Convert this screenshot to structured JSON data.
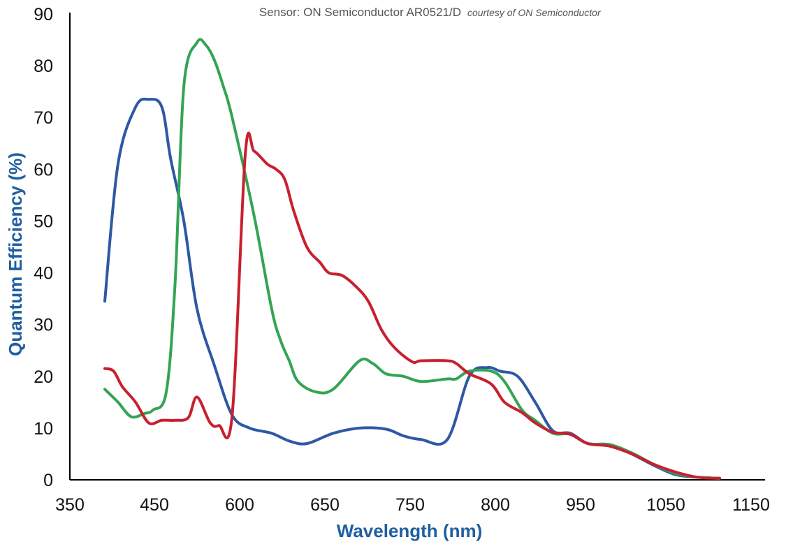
{
  "chart_data": {
    "type": "line",
    "title": "Sensor: ON Semiconductor AR0521/D",
    "subtitle": "courtesy of ON Semiconductor",
    "xlabel": "Wavelength (nm)",
    "ylabel": "Quantum Efficiency (%)",
    "xticks": [
      "350",
      "450",
      "600",
      "650",
      "750",
      "800",
      "950",
      "1050",
      "1150"
    ],
    "yticks": [
      "0",
      "10",
      "20",
      "30",
      "40",
      "50",
      "60",
      "70",
      "80",
      "90"
    ],
    "ylim": [
      0,
      90
    ],
    "grid": false,
    "legend": "none",
    "series": [
      {
        "color": "#2d58a4",
        "x": [
          400,
          415,
          435,
          450,
          465,
          475,
          490,
          505,
          525,
          545,
          565,
          590,
          610,
          630,
          660,
          690,
          720,
          740,
          760,
          790,
          815,
          835,
          850,
          870,
          890,
          910,
          930,
          950,
          975,
          1000,
          1025,
          1050,
          1075,
          1100
        ],
        "values": [
          34.5,
          61,
          72,
          73.5,
          72,
          62,
          50,
          33,
          22,
          12.5,
          10,
          9,
          7.5,
          7,
          9,
          10,
          9.8,
          8.5,
          7.8,
          7.8,
          20,
          21.7,
          21,
          20,
          15,
          9.5,
          9,
          7,
          6.8,
          5,
          2.8,
          1,
          0.5,
          0.3
        ]
      },
      {
        "color": "#34a454",
        "x": [
          400,
          415,
          430,
          445,
          455,
          470,
          480,
          490,
          505,
          515,
          525,
          535,
          545,
          570,
          590,
          600,
          610,
          620,
          640,
          660,
          690,
          705,
          720,
          740,
          760,
          790,
          800,
          815,
          840,
          855,
          875,
          890,
          910,
          930,
          950,
          975,
          1000,
          1025,
          1050,
          1075,
          1100
        ],
        "values": [
          17.5,
          15,
          12.2,
          12.8,
          13.5,
          17,
          38,
          76,
          84.5,
          84,
          81,
          76,
          70,
          51,
          33,
          27,
          23,
          19,
          17,
          17.5,
          23,
          22.5,
          20.5,
          20,
          19,
          19.5,
          19.5,
          21,
          21,
          19,
          13.5,
          11.5,
          9,
          8.8,
          7,
          6.8,
          5.2,
          3,
          1.2,
          0.5,
          0.3
        ]
      },
      {
        "color": "#c8202e",
        "x": [
          400,
          410,
          420,
          435,
          450,
          465,
          480,
          495,
          505,
          520,
          530,
          545,
          560,
          570,
          585,
          595,
          605,
          615,
          630,
          645,
          655,
          670,
          685,
          700,
          715,
          730,
          750,
          760,
          790,
          800,
          815,
          840,
          855,
          875,
          890,
          910,
          930,
          950,
          975,
          1000,
          1025,
          1050,
          1075,
          1100
        ],
        "values": [
          21.5,
          21,
          18,
          15,
          11,
          11.5,
          11.5,
          12,
          16,
          11,
          10.5,
          12.5,
          63,
          63.5,
          61,
          60,
          58,
          52,
          45,
          42,
          40,
          39.5,
          37.5,
          34.5,
          29,
          25.5,
          22.8,
          23,
          23,
          22.5,
          20.5,
          18.5,
          15,
          13,
          11,
          9.2,
          8.8,
          7,
          6.5,
          5,
          3,
          1.5,
          0.5,
          0.3
        ]
      }
    ]
  }
}
